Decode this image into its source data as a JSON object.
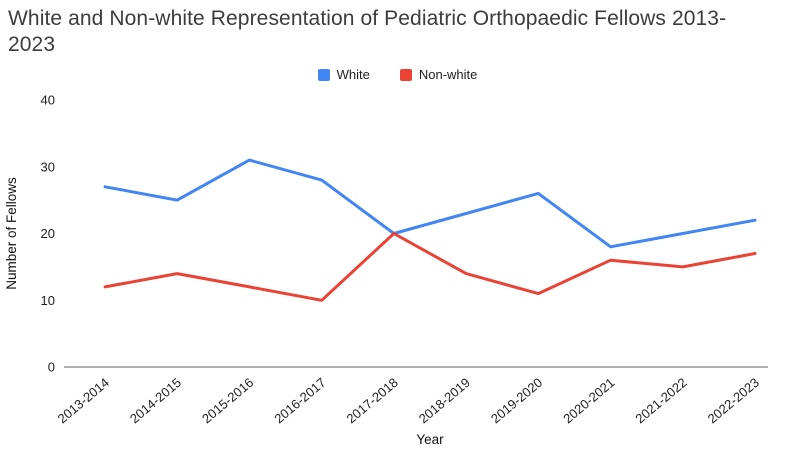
{
  "chart_data": {
    "type": "line",
    "title": "White and Non-white Representation of Pediatric Orthopaedic Fellows 2013-2023",
    "xlabel": "Year",
    "ylabel": "Number of Fellows",
    "categories": [
      "2013-2014",
      "2014-2015",
      "2015-2016",
      "2016-2017",
      "2017-2018",
      "2018-2019",
      "2019-2020",
      "2020-2021",
      "2021-2022",
      "2022-2023"
    ],
    "series": [
      {
        "name": "White",
        "color": "#4285F4",
        "values": [
          27,
          25,
          31,
          28,
          20,
          23,
          26,
          18,
          20,
          22
        ]
      },
      {
        "name": "Non-white",
        "color": "#EA4335",
        "values": [
          12,
          14,
          12,
          10,
          20,
          14,
          11,
          16,
          15,
          17
        ]
      }
    ],
    "ylim": [
      0,
      40
    ],
    "yticks": [
      0,
      10,
      20,
      30,
      40
    ],
    "legend_position": "top",
    "grid": false,
    "axis_color": "#7f7f7f",
    "tick_text_color": "#1f1f1f",
    "title_color": "#3c3c3c"
  }
}
